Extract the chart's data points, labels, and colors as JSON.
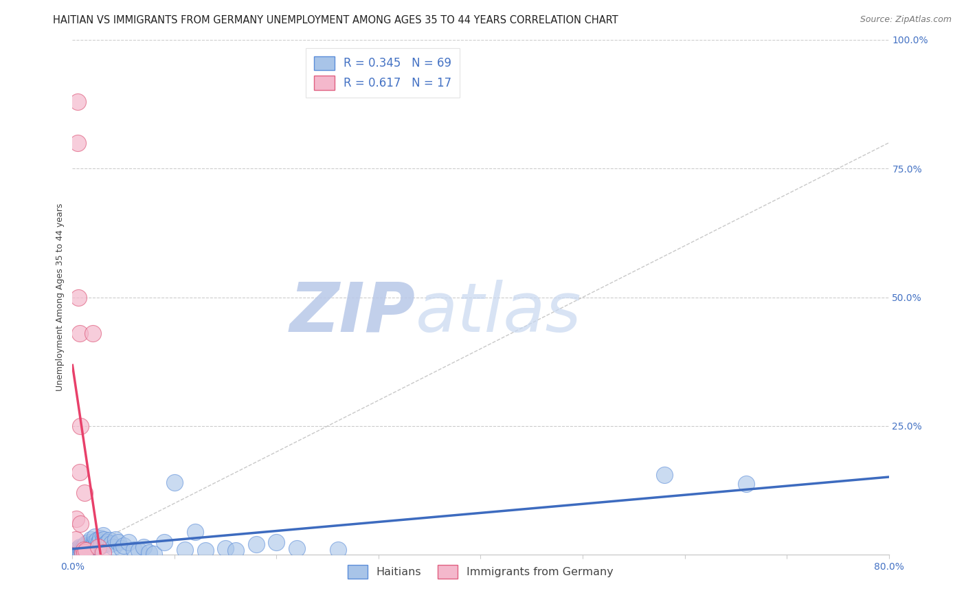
{
  "title": "HAITIAN VS IMMIGRANTS FROM GERMANY UNEMPLOYMENT AMONG AGES 35 TO 44 YEARS CORRELATION CHART",
  "source": "Source: ZipAtlas.com",
  "ylabel": "Unemployment Among Ages 35 to 44 years",
  "xlim": [
    0,
    0.8
  ],
  "ylim": [
    0,
    1.0
  ],
  "blue_R": 0.345,
  "blue_N": 69,
  "pink_R": 0.617,
  "pink_N": 17,
  "blue_color": "#a8c4e8",
  "pink_color": "#f4b8cc",
  "blue_edge_color": "#5b8dd9",
  "pink_edge_color": "#e06080",
  "blue_line_color": "#3d6bbf",
  "pink_line_color": "#e8406a",
  "legend_label_blue": "Haitians",
  "legend_label_pink": "Immigrants from Germany",
  "watermark_zip": "ZIP",
  "watermark_atlas": "atlas",
  "watermark_color": "#ccd9f0",
  "blue_dots_x": [
    0.003,
    0.004,
    0.005,
    0.005,
    0.006,
    0.006,
    0.007,
    0.007,
    0.008,
    0.008,
    0.009,
    0.009,
    0.01,
    0.01,
    0.011,
    0.012,
    0.012,
    0.013,
    0.013,
    0.014,
    0.015,
    0.015,
    0.016,
    0.016,
    0.017,
    0.017,
    0.018,
    0.019,
    0.02,
    0.02,
    0.021,
    0.022,
    0.022,
    0.023,
    0.024,
    0.025,
    0.026,
    0.027,
    0.028,
    0.03,
    0.031,
    0.032,
    0.034,
    0.036,
    0.038,
    0.04,
    0.042,
    0.045,
    0.048,
    0.05,
    0.055,
    0.06,
    0.065,
    0.07,
    0.075,
    0.08,
    0.09,
    0.1,
    0.11,
    0.12,
    0.13,
    0.15,
    0.16,
    0.18,
    0.2,
    0.22,
    0.26,
    0.58,
    0.66
  ],
  "blue_dots_y": [
    0.008,
    0.005,
    0.01,
    0.003,
    0.012,
    0.007,
    0.015,
    0.009,
    0.004,
    0.013,
    0.011,
    0.006,
    0.012,
    0.008,
    0.015,
    0.01,
    0.018,
    0.009,
    0.022,
    0.013,
    0.018,
    0.007,
    0.016,
    0.025,
    0.011,
    0.02,
    0.03,
    0.015,
    0.022,
    0.018,
    0.016,
    0.025,
    0.035,
    0.02,
    0.028,
    0.022,
    0.025,
    0.032,
    0.018,
    0.038,
    0.03,
    0.02,
    0.025,
    0.028,
    0.022,
    0.015,
    0.03,
    0.025,
    0.012,
    0.018,
    0.025,
    0.01,
    0.008,
    0.015,
    0.005,
    0.002,
    0.025,
    0.14,
    0.01,
    0.045,
    0.008,
    0.012,
    0.008,
    0.02,
    0.025,
    0.012,
    0.01,
    0.155,
    0.138
  ],
  "pink_dots_x": [
    0.003,
    0.004,
    0.005,
    0.005,
    0.006,
    0.007,
    0.007,
    0.008,
    0.008,
    0.01,
    0.011,
    0.012,
    0.013,
    0.02,
    0.025,
    0.03,
    0.012
  ],
  "pink_dots_y": [
    0.03,
    0.07,
    0.88,
    0.8,
    0.5,
    0.43,
    0.16,
    0.25,
    0.06,
    0.005,
    0.01,
    0.005,
    0.008,
    0.43,
    0.015,
    0.005,
    0.12
  ],
  "ref_line_x": [
    0.0,
    1.0
  ],
  "ref_line_y": [
    0.0,
    1.0
  ],
  "grid_color": "#cccccc",
  "background_color": "#ffffff",
  "axis_label_color": "#4472c4",
  "title_fontsize": 10.5,
  "label_fontsize": 9,
  "tick_fontsize": 10,
  "source_fontsize": 9
}
